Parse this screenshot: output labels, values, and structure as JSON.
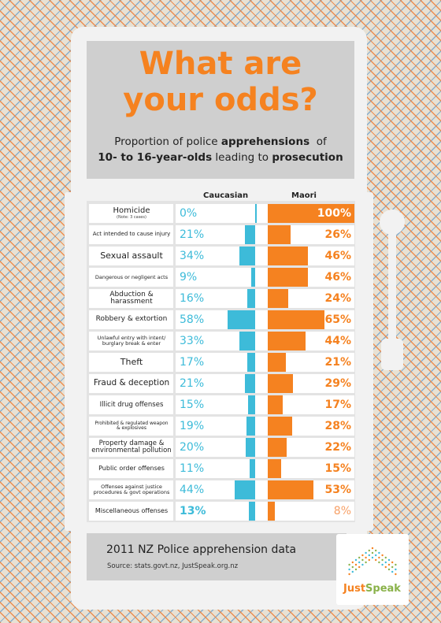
{
  "title": "What are\nyour odds?",
  "subtitle": {
    "line1_pre": "Proportion of police ",
    "line1_bold": "apprehensions",
    "line1_post": "  of",
    "line2_bold1": "10- to 16-year-olds",
    "line2_mid": " leading to ",
    "line2_bold2": "prosecution"
  },
  "colors": {
    "orange": "#f58220",
    "blue": "#3dbbd9",
    "green": "#8ab24a"
  },
  "chart_data": {
    "type": "bar",
    "series": [
      {
        "name": "Caucasian",
        "values": [
          0,
          21,
          34,
          9,
          16,
          58,
          33,
          17,
          21,
          15,
          19,
          20,
          11,
          44,
          13
        ]
      },
      {
        "name": "Maori",
        "values": [
          100,
          26,
          46,
          46,
          24,
          65,
          44,
          21,
          29,
          17,
          28,
          22,
          15,
          53,
          8
        ]
      }
    ],
    "categories": [
      {
        "label": "Homicide",
        "note": "(Note: 3 cases)",
        "size": 10,
        "cauc": "0%",
        "maori": "100%",
        "boldL": false,
        "boldR": true
      },
      {
        "label": "Act intended to cause injury",
        "note": "",
        "size": 7,
        "cauc": "21%",
        "maori": "26%",
        "boldL": false,
        "boldR": true
      },
      {
        "label": "Sexual assault",
        "note": "",
        "size": 11,
        "cauc": "34%",
        "maori": "46%",
        "boldL": false,
        "boldR": true
      },
      {
        "label": "Dangerous or negligent acts",
        "note": "",
        "size": 6.5,
        "cauc": "9%",
        "maori": "46%",
        "boldL": false,
        "boldR": true
      },
      {
        "label": "Abduction & harassment",
        "note": "",
        "size": 9,
        "cauc": "16%",
        "maori": "24%",
        "boldL": false,
        "boldR": true
      },
      {
        "label": "Robbery & extortion",
        "note": "",
        "size": 9,
        "cauc": "58%",
        "maori": "65%",
        "boldL": false,
        "boldR": true
      },
      {
        "label": "Unlawful entry with intent/\nburglary break & enter",
        "note": "",
        "size": 6.5,
        "cauc": "33%",
        "maori": "44%",
        "boldL": false,
        "boldR": true
      },
      {
        "label": "Theft",
        "note": "",
        "size": 11,
        "cauc": "17%",
        "maori": "21%",
        "boldL": false,
        "boldR": true
      },
      {
        "label": "Fraud & deception",
        "note": "",
        "size": 10.5,
        "cauc": "21%",
        "maori": "29%",
        "boldL": false,
        "boldR": true
      },
      {
        "label": "Illicit drug offenses",
        "note": "",
        "size": 8.5,
        "cauc": "15%",
        "maori": "17%",
        "boldL": false,
        "boldR": true
      },
      {
        "label": "Prohibited & regulated weapon\n& explosives",
        "note": "",
        "size": 6,
        "cauc": "19%",
        "maori": "28%",
        "boldL": false,
        "boldR": true
      },
      {
        "label": "Property damage &\nenvironmental pollution",
        "note": "",
        "size": 8.5,
        "cauc": "20%",
        "maori": "22%",
        "boldL": false,
        "boldR": true
      },
      {
        "label": "Public order offenses",
        "note": "",
        "size": 8,
        "cauc": "11%",
        "maori": "15%",
        "boldL": false,
        "boldR": true
      },
      {
        "label": "Offenses against justice\nprocedures & govt operations",
        "note": "",
        "size": 6.5,
        "cauc": "44%",
        "maori": "53%",
        "boldL": false,
        "boldR": true
      },
      {
        "label": "Miscellaneous offenses",
        "note": "",
        "size": 8,
        "cauc": "13%",
        "maori": "8%",
        "boldL": true,
        "boldR": false
      }
    ],
    "xlim": [
      0,
      100
    ]
  },
  "footer": {
    "title": "2011 NZ Police apprehension data",
    "source": "Source: stats.govt.nz, JustSpeak.org.nz"
  },
  "logo": {
    "just": "Just",
    "speak": "Speak"
  }
}
